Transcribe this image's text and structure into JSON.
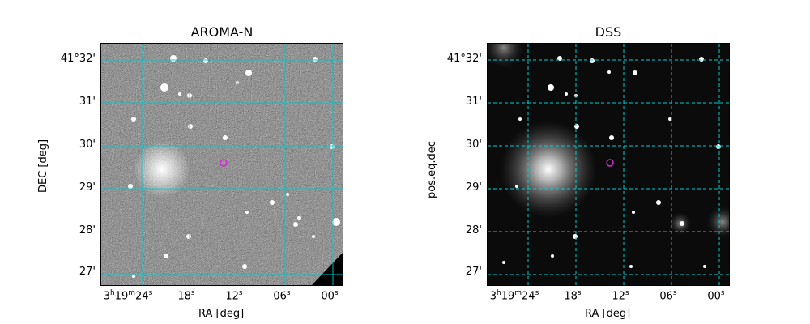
{
  "left": {
    "title": "AROMA-N",
    "xlabel": "RA [deg]",
    "ylabel": "DEC [deg]",
    "dec_ticks": [
      "41°32'",
      "31'",
      "30'",
      "29'",
      "28'",
      "27'"
    ],
    "ra_ticks": [
      {
        "h": "3",
        "m": "19",
        "s": "24"
      },
      {
        "s": "18"
      },
      {
        "s": "12"
      },
      {
        "s": "06"
      },
      {
        "s": "00"
      }
    ]
  },
  "right": {
    "title": "DSS",
    "xlabel": "RA [deg]",
    "ylabel": "pos.eq.dec",
    "dec_ticks": [
      "41°32'",
      "31'",
      "30'",
      "29'",
      "28'",
      "27'"
    ],
    "ra_ticks": [
      {
        "h": "3",
        "m": "19",
        "s": "24"
      },
      {
        "s": "18"
      },
      {
        "s": "12"
      },
      {
        "s": "06"
      },
      {
        "s": "00"
      }
    ]
  },
  "colors": {
    "grid": "#00cccc",
    "marker": "#cc33cc"
  }
}
